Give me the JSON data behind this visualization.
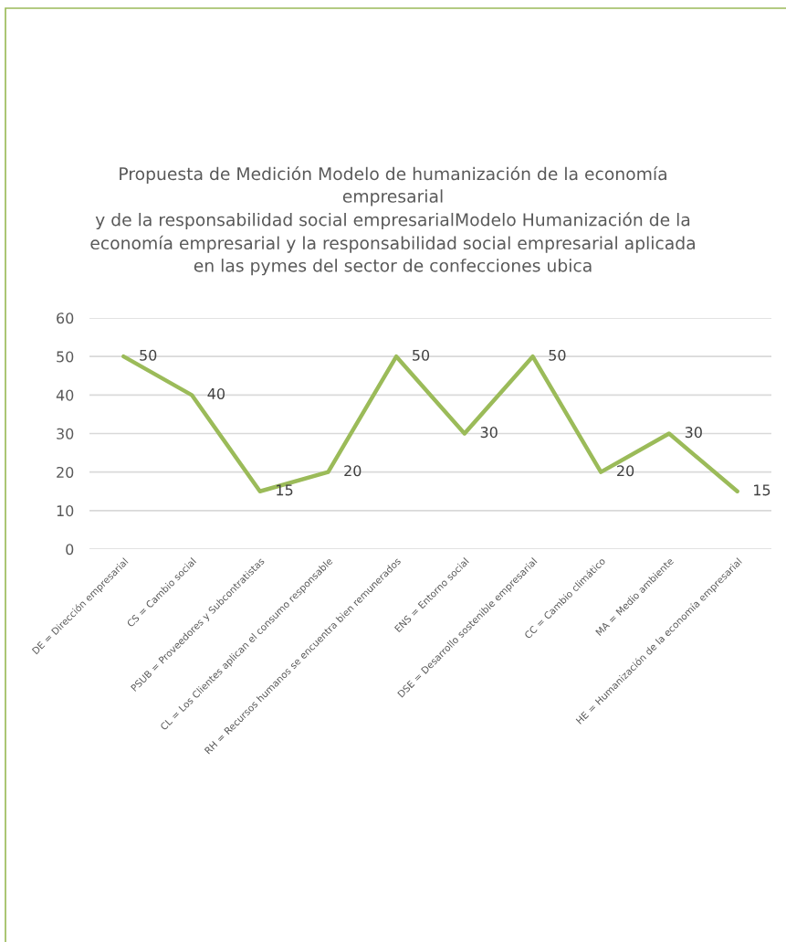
{
  "chart_data": {
    "type": "line",
    "title": "Propuesta de Medición Modelo de humanización de la economía\nempresarial\ny de la responsabilidad social empresarialModelo Humanización de la\neconomía empresarial y la responsabilidad social empresarial aplicada\nen las pymes del sector de confecciones ubica",
    "categories": [
      "DE = Dirección empresarial",
      "CS = Cambio social",
      "PSUB = Proveedores y Subcontratistas",
      "CL = Los Clientes aplican el consumo responsable",
      "RH = Recursos humanos se encuentra bien remunerados",
      "ENS = Entorno social",
      "DSE = Desarrollo sostenible empresarial",
      "CC = Cambio climático",
      "MA = Medio ambiente",
      "HE = Humanización de la economía empresarial"
    ],
    "series": [
      {
        "color": "#9bbb59",
        "values": [
          50,
          40,
          15,
          20,
          50,
          30,
          50,
          20,
          30,
          15
        ]
      }
    ],
    "ylim": [
      0,
      60
    ],
    "yticks": [
      0,
      10,
      20,
      30,
      40,
      50,
      60
    ],
    "grid": "y",
    "data_labels": true,
    "line_style": "solid"
  }
}
